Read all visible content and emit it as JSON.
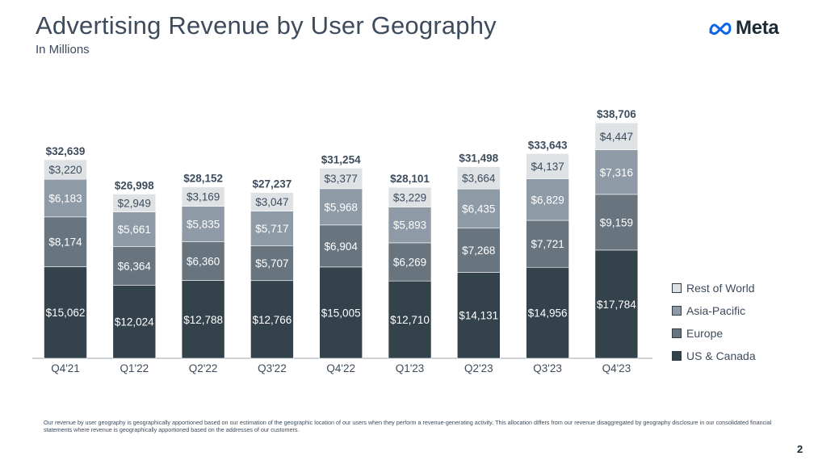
{
  "header": {
    "title": "Advertising Revenue by User Geography",
    "subtitle": "In Millions",
    "logo_text": "Meta",
    "logo_icon": "meta-infinity-icon"
  },
  "colors": {
    "rest_of_world": "#dfe2e5",
    "asia_pacific": "#8e9aa5",
    "europe": "#68757f",
    "us_canada": "#34424c",
    "label_dark_text": "#3d4b5c",
    "label_light_text": "#ffffff",
    "axis": "#9aa4ad"
  },
  "chart_data": {
    "type": "bar",
    "stacked": true,
    "title": "Advertising Revenue by User Geography",
    "subtitle": "In Millions",
    "categories": [
      "Q4'21",
      "Q1'22",
      "Q2'22",
      "Q3'22",
      "Q4'22",
      "Q1'23",
      "Q2'23",
      "Q3'23",
      "Q4'23"
    ],
    "series": [
      {
        "name": "US & Canada",
        "values": [
          15062,
          12024,
          12788,
          12766,
          15005,
          12710,
          14131,
          14956,
          17784
        ]
      },
      {
        "name": "Europe",
        "values": [
          8174,
          6364,
          6360,
          5707,
          6904,
          6269,
          7268,
          7721,
          9159
        ]
      },
      {
        "name": "Asia-Pacific",
        "values": [
          6183,
          5661,
          5835,
          5717,
          5968,
          5893,
          6435,
          6829,
          7316
        ]
      },
      {
        "name": "Rest of World",
        "values": [
          3220,
          2949,
          3169,
          3047,
          3377,
          3229,
          3664,
          4137,
          4447
        ]
      }
    ],
    "totals": [
      32639,
      26998,
      28152,
      27237,
      31254,
      28101,
      31498,
      33643,
      38706
    ],
    "value_prefix": "$",
    "xlabel": "",
    "ylabel": "",
    "ylim": [
      0,
      40000
    ],
    "grid": false,
    "legend": [
      "Rest of World",
      "Asia-Pacific",
      "Europe",
      "US & Canada"
    ],
    "legend_position": "right"
  },
  "footnote": "Our revenue by user geography is geographically apportioned based on our estimation of the geographic location of our users when they perform a revenue-generating activity. This allocation differs from our revenue disaggregated by geography disclosure in our consolidated financial statements where revenue is geographically apportioned based on the addresses of our customers.",
  "page_number": "2"
}
